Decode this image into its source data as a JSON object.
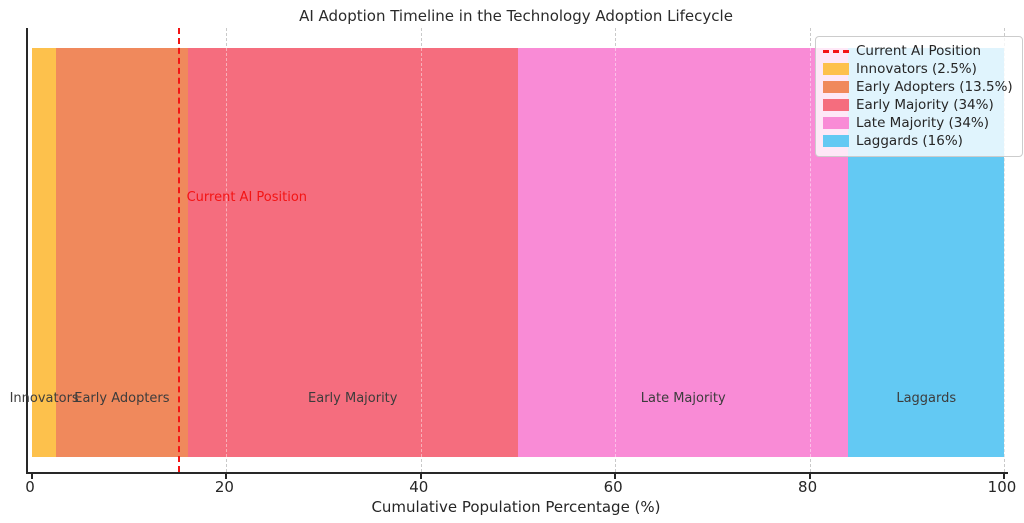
{
  "chart_data": {
    "type": "bar",
    "subtype": "cumulative-horizontal-bands-timeline",
    "title": "AI Adoption Timeline in the Technology Adoption Lifecycle",
    "xlabel": "Cumulative Population Percentage (%)",
    "xlim": [
      0,
      100
    ],
    "xticks": [
      0,
      20,
      40,
      60,
      80,
      100
    ],
    "grid": {
      "axis": "x",
      "style": "dashed",
      "color": "#c9c9c9"
    },
    "segments": [
      {
        "label": "Innovators",
        "percent": 2.5,
        "start": 0,
        "end": 2.5,
        "color": "#fdc14c"
      },
      {
        "label": "Early Adopters",
        "percent": 13.5,
        "start": 2.5,
        "end": 16,
        "color": "#f0895c"
      },
      {
        "label": "Early Majority",
        "percent": 34,
        "start": 16,
        "end": 50,
        "color": "#f56d7e"
      },
      {
        "label": "Late Majority",
        "percent": 34,
        "start": 50,
        "end": 84,
        "color": "#f98bd6"
      },
      {
        "label": "Laggards",
        "percent": 16,
        "start": 84,
        "end": 100,
        "color": "#63c9f3"
      }
    ],
    "marker_line": {
      "label": "Current AI Position",
      "x": 15,
      "color": "#f31414",
      "style": "dashed"
    },
    "annotation": {
      "text": "Current AI Position",
      "x": 15.7,
      "color": "#f31414"
    },
    "legend": {
      "position": "upper-right",
      "items": [
        {
          "swatch": "dashed-line",
          "color": "#f31414",
          "label": "Current AI Position"
        },
        {
          "swatch": "patch",
          "color": "#fdc14c",
          "label": "Innovators (2.5%)"
        },
        {
          "swatch": "patch",
          "color": "#f0895c",
          "label": "Early Adopters (13.5%)"
        },
        {
          "swatch": "patch",
          "color": "#f56d7e",
          "label": "Early Majority (34%)"
        },
        {
          "swatch": "patch",
          "color": "#f98bd6",
          "label": "Late Majority (34%)"
        },
        {
          "swatch": "patch",
          "color": "#63c9f3",
          "label": "Laggards (16%)"
        }
      ]
    }
  }
}
